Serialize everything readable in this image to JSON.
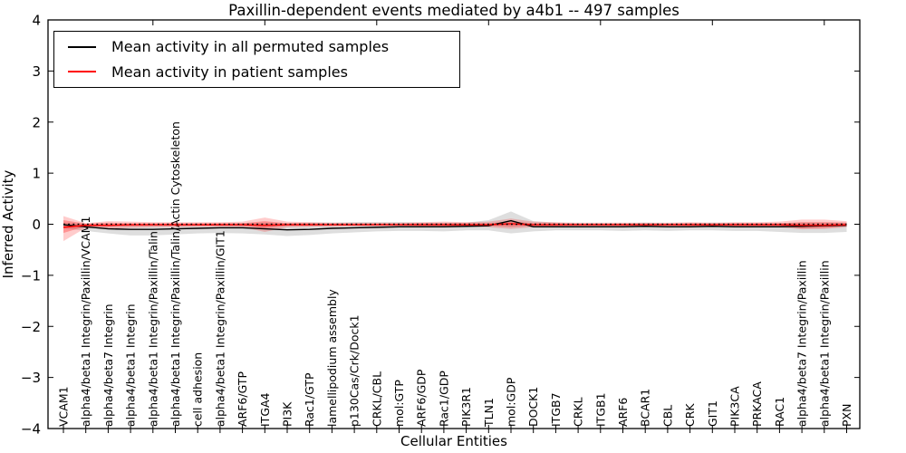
{
  "chart_data": {
    "type": "line",
    "title": "Paxillin-dependent events mediated by a4b1 -- 497 samples",
    "xlabel": "Cellular Entities",
    "ylabel": "Inferred Activity",
    "ylim": [
      -4,
      4
    ],
    "yticks": [
      {
        "label": "4",
        "value": 4
      },
      {
        "label": "3",
        "value": 3
      },
      {
        "label": "2",
        "value": 2
      },
      {
        "label": "1",
        "value": 1
      },
      {
        "label": "0",
        "value": 0
      },
      {
        "label": "−1",
        "value": -1
      },
      {
        "label": "−2",
        "value": -2
      },
      {
        "label": "−3",
        "value": -3
      },
      {
        "label": "−4",
        "value": -4
      }
    ],
    "grid": false,
    "legend_position": "upper-left",
    "categories": [
      "VCAM1",
      "alpha4/beta1 Integrin/Paxillin/VCAM1",
      "alpha4/beta7 Integrin",
      "alpha4/beta1 Integrin",
      "alpha4/beta1 Integrin/Paxillin/Talin",
      "alpha4/beta1 Integrin/Paxillin/Talin/Actin Cytoskeleton",
      "cell adhesion",
      "alpha4/beta1 Integrin/Paxillin/GIT1",
      "ARF6/GTP",
      "ITGA4",
      "PI3K",
      "Rac1/GTP",
      "lamellipodium assembly",
      "p130Cas/Crk/Dock1",
      "CRKL/CBL",
      "mol:GTP",
      "ARF6/GDP",
      "Rac1/GDP",
      "PIK3R1",
      "TLN1",
      "mol:GDP",
      "DOCK1",
      "ITGB7",
      "CRKL",
      "ITGB1",
      "ARF6",
      "BCAR1",
      "CBL",
      "CRK",
      "GIT1",
      "PIK3CA",
      "PRKACA",
      "RAC1",
      "alpha4/beta7 Integrin/Paxillin",
      "alpha4/beta1 Integrin/Paxillin",
      "PXN"
    ],
    "series": [
      {
        "name": "Mean activity in all permuted samples",
        "color": "#000000",
        "values": [
          -0.01,
          -0.05,
          -0.09,
          -0.1,
          -0.1,
          -0.09,
          -0.08,
          -0.07,
          -0.07,
          -0.09,
          -0.11,
          -0.1,
          -0.08,
          -0.07,
          -0.06,
          -0.05,
          -0.05,
          -0.05,
          -0.04,
          -0.03,
          0.07,
          -0.05,
          -0.05,
          -0.05,
          -0.05,
          -0.05,
          -0.04,
          -0.05,
          -0.05,
          -0.04,
          -0.05,
          -0.05,
          -0.05,
          -0.04,
          -0.03,
          -0.02
        ]
      },
      {
        "name": "Mean activity in patient samples",
        "color": "#ff0000",
        "values": [
          -0.06,
          -0.02,
          -0.02,
          -0.01,
          -0.01,
          -0.01,
          -0.01,
          -0.01,
          -0.01,
          -0.02,
          -0.01,
          -0.01,
          -0.01,
          -0.01,
          -0.01,
          -0.01,
          -0.01,
          -0.01,
          -0.01,
          -0.01,
          0.01,
          -0.01,
          -0.01,
          -0.01,
          -0.01,
          -0.01,
          -0.01,
          -0.01,
          -0.01,
          -0.01,
          -0.01,
          -0.01,
          -0.01,
          -0.02,
          -0.02,
          -0.01
        ]
      }
    ],
    "bands": [
      {
        "name": "permuted-range",
        "color": "rgba(0,0,0,0.13)",
        "top": [
          0.03,
          0.0,
          -0.02,
          -0.02,
          -0.02,
          -0.01,
          0.0,
          0.01,
          0.02,
          0.03,
          0.02,
          0.03,
          0.03,
          0.04,
          0.04,
          0.04,
          0.03,
          0.03,
          0.03,
          0.08,
          0.25,
          0.06,
          0.03,
          0.02,
          0.02,
          0.02,
          0.03,
          0.02,
          0.02,
          0.03,
          0.02,
          0.02,
          0.02,
          0.03,
          0.03,
          0.03
        ],
        "bottom": [
          -0.08,
          -0.13,
          -0.18,
          -0.22,
          -0.22,
          -0.2,
          -0.18,
          -0.17,
          -0.18,
          -0.2,
          -0.23,
          -0.21,
          -0.18,
          -0.16,
          -0.14,
          -0.13,
          -0.13,
          -0.14,
          -0.12,
          -0.12,
          -0.18,
          -0.14,
          -0.12,
          -0.12,
          -0.12,
          -0.13,
          -0.12,
          -0.13,
          -0.12,
          -0.12,
          -0.13,
          -0.13,
          -0.15,
          -0.17,
          -0.17,
          -0.15
        ]
      },
      {
        "name": "patient-range-outer",
        "color": "rgba(255,0,0,0.20)",
        "top": [
          0.16,
          0.02,
          0.06,
          0.05,
          0.04,
          0.04,
          0.04,
          0.04,
          0.05,
          0.13,
          0.05,
          0.04,
          0.03,
          0.03,
          0.03,
          0.03,
          0.04,
          0.05,
          0.04,
          0.05,
          0.11,
          0.05,
          0.04,
          0.03,
          0.03,
          0.03,
          0.03,
          0.03,
          0.04,
          0.03,
          0.04,
          0.04,
          0.05,
          0.09,
          0.09,
          0.06
        ],
        "bottom": [
          -0.33,
          -0.07,
          -0.09,
          -0.07,
          -0.06,
          -0.06,
          -0.05,
          -0.05,
          -0.06,
          -0.15,
          -0.06,
          -0.05,
          -0.05,
          -0.04,
          -0.04,
          -0.04,
          -0.05,
          -0.05,
          -0.05,
          -0.06,
          -0.09,
          -0.06,
          -0.05,
          -0.04,
          -0.04,
          -0.04,
          -0.04,
          -0.04,
          -0.05,
          -0.04,
          -0.05,
          -0.05,
          -0.06,
          -0.1,
          -0.09,
          -0.06
        ]
      },
      {
        "name": "patient-range-inner",
        "color": "rgba(255,0,0,0.28)",
        "top": [
          0.08,
          0.01,
          0.03,
          0.02,
          0.02,
          0.02,
          0.02,
          0.02,
          0.02,
          0.06,
          0.02,
          0.02,
          0.01,
          0.01,
          0.01,
          0.01,
          0.02,
          0.02,
          0.02,
          0.02,
          0.05,
          0.02,
          0.02,
          0.01,
          0.01,
          0.01,
          0.01,
          0.01,
          0.02,
          0.01,
          0.02,
          0.02,
          0.02,
          0.04,
          0.04,
          0.03
        ],
        "bottom": [
          -0.17,
          -0.04,
          -0.05,
          -0.04,
          -0.03,
          -0.03,
          -0.03,
          -0.03,
          -0.03,
          -0.08,
          -0.03,
          -0.03,
          -0.02,
          -0.02,
          -0.02,
          -0.02,
          -0.03,
          -0.03,
          -0.03,
          -0.03,
          -0.05,
          -0.03,
          -0.03,
          -0.02,
          -0.02,
          -0.02,
          -0.02,
          -0.02,
          -0.03,
          -0.02,
          -0.03,
          -0.03,
          -0.03,
          -0.08,
          -0.07,
          -0.04
        ]
      }
    ],
    "zero_reference_line": 0
  }
}
